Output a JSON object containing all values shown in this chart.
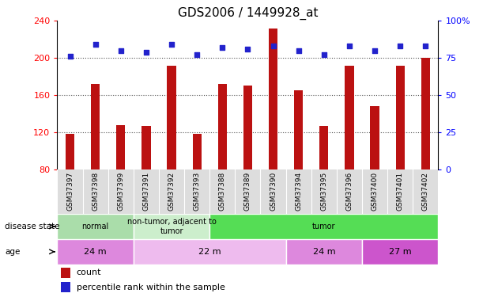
{
  "title": "GDS2006 / 1449928_at",
  "samples": [
    "GSM37397",
    "GSM37398",
    "GSM37399",
    "GSM37391",
    "GSM37392",
    "GSM37393",
    "GSM37388",
    "GSM37389",
    "GSM37390",
    "GSM37394",
    "GSM37395",
    "GSM37396",
    "GSM37400",
    "GSM37401",
    "GSM37402"
  ],
  "counts": [
    118,
    172,
    128,
    127,
    192,
    118,
    172,
    170,
    232,
    165,
    127,
    192,
    148,
    192,
    200
  ],
  "percentiles": [
    76,
    84,
    80,
    79,
    84,
    77,
    82,
    81,
    83,
    80,
    77,
    83,
    80,
    83,
    83
  ],
  "ylim_left": [
    80,
    240
  ],
  "ylim_right": [
    0,
    100
  ],
  "yticks_left": [
    80,
    120,
    160,
    200,
    240
  ],
  "yticks_right": [
    0,
    25,
    50,
    75,
    100
  ],
  "bar_color": "#bb1111",
  "dot_color": "#2222cc",
  "grid_color": "#555555",
  "disease_state_groups": [
    {
      "label": "normal",
      "start": 0,
      "end": 3,
      "color": "#aaddaa"
    },
    {
      "label": "non-tumor, adjacent to\ntumor",
      "start": 3,
      "end": 6,
      "color": "#cceecc"
    },
    {
      "label": "tumor",
      "start": 6,
      "end": 15,
      "color": "#55dd55"
    }
  ],
  "age_groups": [
    {
      "label": "24 m",
      "start": 0,
      "end": 3,
      "color": "#dd88dd"
    },
    {
      "label": "22 m",
      "start": 3,
      "end": 9,
      "color": "#eebbee"
    },
    {
      "label": "24 m",
      "start": 9,
      "end": 12,
      "color": "#dd88dd"
    },
    {
      "label": "27 m",
      "start": 12,
      "end": 15,
      "color": "#cc55cc"
    }
  ],
  "legend_count_color": "#bb1111",
  "legend_dot_color": "#2222cc",
  "tick_fontsize": 8,
  "title_fontsize": 11,
  "annot_fontsize": 8,
  "bar_width": 0.35
}
